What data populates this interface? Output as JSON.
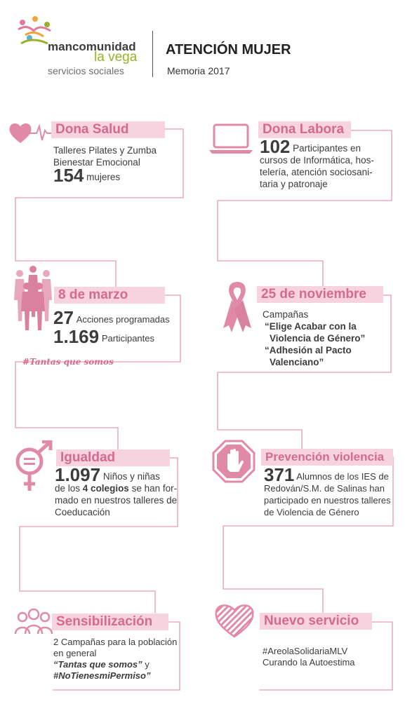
{
  "header": {
    "logo_line1_a": "man",
    "logo_line1_b": "comunidad",
    "logo_line2": "la vega",
    "logo_line3": "servicios sociales",
    "title": "ATENCIÓN MUJER",
    "subtitle": "Memoria 2017"
  },
  "dona_salud": {
    "title": "Dona Salud",
    "line1": "Talleres Pilates y Zumba",
    "line2": "Bienestar Emocional",
    "number": "154",
    "unit": "mujeres"
  },
  "dona_labora": {
    "title": "Dona Labora",
    "number": "102",
    "line1": "Participantes en",
    "line2": "cursos de Informática, hos-",
    "line3": "telería, atención sociosani-",
    "line4": "taria y patronaje"
  },
  "marzo": {
    "title": "8 de marzo",
    "number1": "27",
    "label1": "Acciones programadas",
    "number2": "1.169",
    "label2": "Participantes",
    "hashtag": "#Tantas que somos"
  },
  "noviembre": {
    "title": "25 de noviembre",
    "line1": "Campañas",
    "quote1a": "“Elige Acabar con la",
    "quote1b": "Violencia de Género”",
    "quote2a": "“Adhesión al Pacto",
    "quote2b": "Valenciano”"
  },
  "igualdad": {
    "title": "Igualdad",
    "number": "1.097",
    "line1": "Niños y niñas",
    "line2a": "de los",
    "line2b": "4 colegios",
    "line2c": "se han for-",
    "line3": "mado en nuestros talleres de",
    "line4": "Coeducación"
  },
  "prevencion": {
    "title": "Prevención violencia",
    "number": "371",
    "line1": "Alumnos de los IES de",
    "line2": "Redován/S.M. de Salinas han",
    "line3": "participado en nuestros talleres",
    "line4": "de Violencia de Género"
  },
  "sensibilizacion": {
    "title": "Sensibilización",
    "line1": "2 Campañas para la población",
    "line2": "en general",
    "line3a": "“Tantas que somos”",
    "line3b": "y",
    "line4": "#NoTienesmiPermiso”"
  },
  "nuevo_servicio": {
    "title": "Nuevo servicio",
    "line1": "#AreolaSolidariaMLV",
    "line2": "Curando la Autoestima"
  },
  "colors": {
    "accent": "#d46a8f",
    "title_bg": "#f6d3df",
    "icon_pink": "#e08aa8",
    "line": "#e39ab4"
  }
}
